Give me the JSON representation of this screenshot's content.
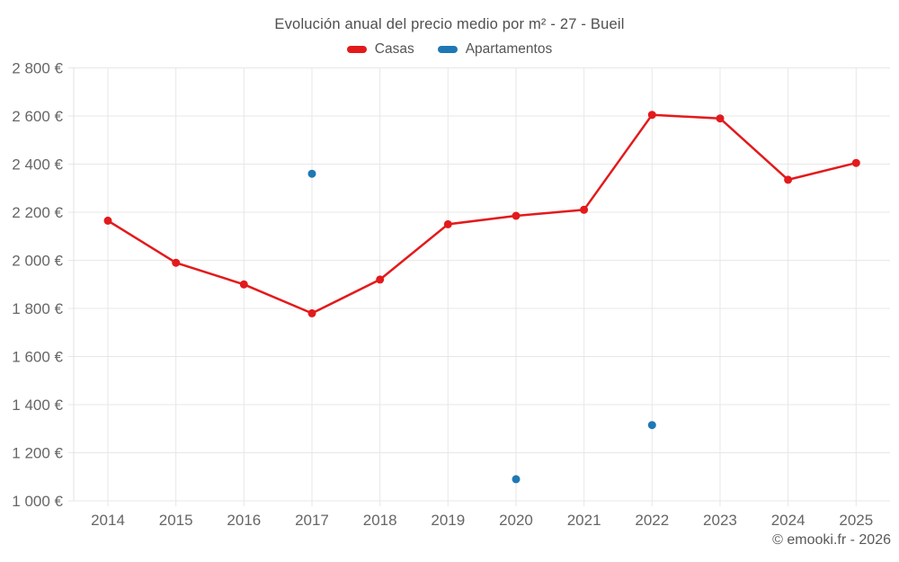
{
  "chart_data": {
    "type": "line",
    "title": "Evolución anual del precio medio por m² - 27 - Bueil",
    "categories": [
      "2014",
      "2015",
      "2016",
      "2017",
      "2018",
      "2019",
      "2020",
      "2021",
      "2022",
      "2023",
      "2024",
      "2025"
    ],
    "series": [
      {
        "name": "Casas",
        "type": "line",
        "color": "#e31a1c",
        "values": [
          2165,
          1990,
          1900,
          1780,
          1920,
          2150,
          2185,
          2210,
          2605,
          2590,
          2335,
          2405
        ]
      },
      {
        "name": "Apartamentos",
        "type": "scatter",
        "color": "#1f78b4",
        "values": [
          null,
          null,
          null,
          2360,
          null,
          null,
          1090,
          null,
          1315,
          null,
          null,
          null
        ]
      }
    ],
    "xlabel": "",
    "ylabel": "",
    "ylim": [
      1000,
      2800
    ],
    "ytick_step": 200,
    "y_tick_suffix": " €",
    "grid": true,
    "legend_position": "top",
    "style": {
      "grid_color": "#e7e7e7",
      "axis_color": "#e0e0e0",
      "tick_text_color": "#666666",
      "point_radius": 4.5,
      "line_width": 2.5
    }
  },
  "footer": {
    "credit": "© emooki.fr - 2026"
  }
}
